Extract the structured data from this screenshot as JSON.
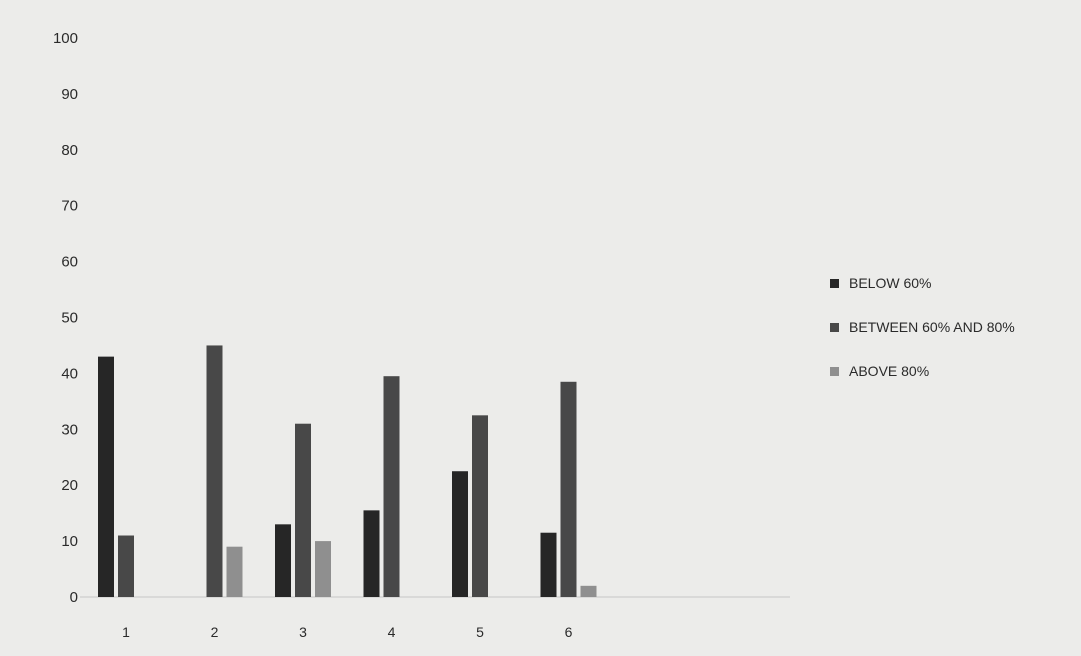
{
  "chart_data": {
    "type": "bar",
    "title": "",
    "xlabel": "",
    "ylabel": "",
    "categories": [
      "1",
      "2",
      "3",
      "4",
      "5",
      "6"
    ],
    "y_ticks": [
      "0",
      "10",
      "20",
      "30",
      "40",
      "50",
      "60",
      "70",
      "80",
      "90",
      "100"
    ],
    "ylim": [
      0,
      100
    ],
    "grid": false,
    "legend_position": "right",
    "series": [
      {
        "name": "BELOW 60%",
        "color": "#262626",
        "values": [
          43,
          0,
          13,
          15.5,
          22.5,
          11.5
        ]
      },
      {
        "name": "BETWEEN 60% AND 80%",
        "color": "#484848",
        "values": [
          11,
          45,
          31,
          39.5,
          32.5,
          38.5
        ]
      },
      {
        "name": "ABOVE 80%",
        "color": "#8f8f8f",
        "values": [
          0,
          9,
          10,
          0,
          0,
          2
        ]
      }
    ]
  }
}
